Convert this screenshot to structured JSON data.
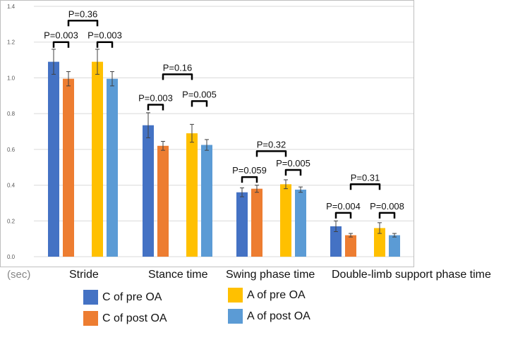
{
  "chart_data": {
    "type": "bar",
    "unit_label": "(sec)",
    "categories": [
      "Stride",
      "Stance time",
      "Swing phase time",
      "Double-limb support phase  time"
    ],
    "ylim": [
      0,
      1.4
    ],
    "yticks": [
      "0.0",
      "0.2",
      "0.4",
      "0.6",
      "0.8",
      "1.0",
      "1.2",
      "1.4"
    ],
    "grid": true,
    "series": [
      {
        "name": "C of pre OA",
        "color": "#4472C4",
        "values": [
          1.09,
          0.735,
          0.36,
          0.17
        ],
        "errors": [
          0.07,
          0.07,
          0.025,
          0.03
        ]
      },
      {
        "name": "C of post OA",
        "color": "#ED7D31",
        "values": [
          0.995,
          0.62,
          0.38,
          0.12
        ],
        "errors": [
          0.04,
          0.025,
          0.02,
          0.01
        ]
      },
      {
        "name": "A of pre OA",
        "color": "#FFC000",
        "values": [
          1.09,
          0.69,
          0.405,
          0.16
        ],
        "errors": [
          0.07,
          0.05,
          0.025,
          0.03
        ]
      },
      {
        "name": "A of post OA",
        "color": "#5B9BD5",
        "values": [
          0.995,
          0.625,
          0.375,
          0.12
        ],
        "errors": [
          0.04,
          0.03,
          0.015,
          0.01
        ]
      }
    ],
    "annotations": [
      {
        "label": "P=0.003",
        "category": 0,
        "from": 0,
        "to": 1,
        "level": 1.2
      },
      {
        "label": "P=0.003",
        "category": 0,
        "from": 2,
        "to": 3,
        "level": 1.2
      },
      {
        "label": "P=0.36",
        "category": 0,
        "from": 1,
        "to": 2,
        "level": 1.32
      },
      {
        "label": "P=0.003",
        "category": 1,
        "from": 0,
        "to": 1,
        "level": 0.85
      },
      {
        "label": "P=0.005",
        "category": 1,
        "from": 2,
        "to": 3,
        "level": 0.87
      },
      {
        "label": "P=0.16",
        "category": 1,
        "from": 1,
        "to": 2,
        "level": 1.02
      },
      {
        "label": "P=0.059",
        "category": 2,
        "from": 0,
        "to": 1,
        "level": 0.445
      },
      {
        "label": "P=0.005",
        "category": 2,
        "from": 2,
        "to": 3,
        "level": 0.485
      },
      {
        "label": "P=0.32",
        "category": 2,
        "from": 1,
        "to": 2,
        "level": 0.59
      },
      {
        "label": "P=0.004",
        "category": 3,
        "from": 0,
        "to": 1,
        "level": 0.245
      },
      {
        "label": "P=0.008",
        "category": 3,
        "from": 2,
        "to": 3,
        "level": 0.245
      },
      {
        "label": "P=0.31",
        "category": 3,
        "from": 1,
        "to": 2,
        "level": 0.405
      }
    ]
  }
}
